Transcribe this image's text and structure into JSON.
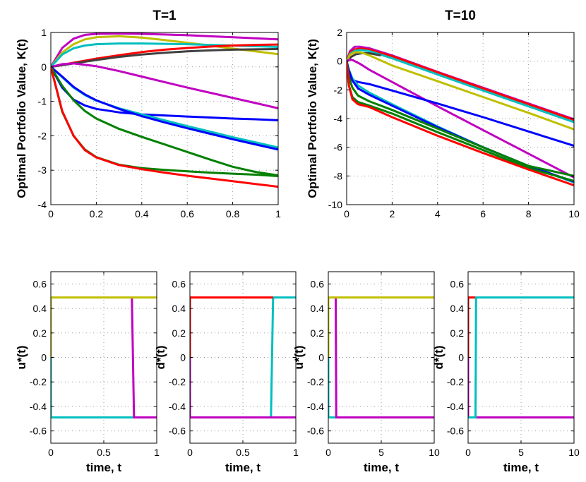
{
  "chart_data": [
    {
      "id": "k-t1",
      "type": "line",
      "title": "T=1",
      "xlabel": "",
      "ylabel": "Optimal Portfolio Value, K(t)",
      "xlim": [
        0,
        1
      ],
      "ylim": [
        -4,
        1
      ],
      "xticks": [
        0,
        0.2,
        0.4,
        0.6,
        0.8,
        1
      ],
      "xtick_labels": [
        "0",
        "0.2",
        "0.4",
        "0.6",
        "0.8",
        "1"
      ],
      "yticks": [
        -4,
        -3,
        -2,
        -1,
        0,
        1
      ],
      "ytick_labels": [
        "-4",
        "-3",
        "-2",
        "-1",
        "0",
        "1"
      ],
      "grid": true,
      "series": [
        {
          "name": "magenta-upper",
          "color": "#c000c0",
          "x": [
            0,
            0.05,
            0.1,
            0.15,
            0.2,
            0.3,
            0.4,
            0.5,
            0.6,
            0.7,
            0.8,
            0.9,
            1.0
          ],
          "y": [
            0,
            0.55,
            0.82,
            0.93,
            0.96,
            0.97,
            0.96,
            0.94,
            0.92,
            0.89,
            0.86,
            0.83,
            0.8
          ]
        },
        {
          "name": "olive",
          "color": "#bfbf00",
          "x": [
            0,
            0.05,
            0.1,
            0.15,
            0.2,
            0.3,
            0.4,
            0.5,
            0.6,
            0.7,
            0.8,
            0.9,
            1.0
          ],
          "y": [
            0,
            0.42,
            0.66,
            0.8,
            0.86,
            0.89,
            0.85,
            0.78,
            0.7,
            0.62,
            0.53,
            0.45,
            0.37
          ]
        },
        {
          "name": "cyan-upper",
          "color": "#00bfbf",
          "x": [
            0,
            0.05,
            0.1,
            0.15,
            0.2,
            0.3,
            0.4,
            0.5,
            0.6,
            0.7,
            0.8,
            0.9,
            1.0
          ],
          "y": [
            0,
            0.36,
            0.54,
            0.62,
            0.66,
            0.68,
            0.68,
            0.67,
            0.66,
            0.64,
            0.62,
            0.6,
            0.58
          ]
        },
        {
          "name": "red-upper",
          "color": "#ff0000",
          "x": [
            0,
            0.1,
            0.2,
            0.3,
            0.4,
            0.5,
            0.6,
            0.7,
            0.8,
            0.9,
            1.0
          ],
          "y": [
            0,
            0.12,
            0.24,
            0.34,
            0.43,
            0.5,
            0.55,
            0.59,
            0.62,
            0.64,
            0.65
          ]
        },
        {
          "name": "dark-gray",
          "color": "#404040",
          "x": [
            0,
            0.1,
            0.2,
            0.3,
            0.4,
            0.5,
            0.6,
            0.7,
            0.8,
            0.9,
            1.0
          ],
          "y": [
            0,
            0.1,
            0.2,
            0.29,
            0.36,
            0.41,
            0.45,
            0.48,
            0.5,
            0.51,
            0.52
          ]
        },
        {
          "name": "magenta-lower",
          "color": "#c000c0",
          "x": [
            0,
            0.05,
            0.1,
            0.2,
            0.3,
            0.4,
            0.5,
            0.6,
            0.7,
            0.8,
            0.9,
            1.0
          ],
          "y": [
            0,
            0.08,
            0.1,
            0.02,
            -0.12,
            -0.28,
            -0.44,
            -0.6,
            -0.75,
            -0.9,
            -1.05,
            -1.2
          ]
        },
        {
          "name": "blue-1",
          "color": "#0000ff",
          "x": [
            0,
            0.05,
            0.1,
            0.15,
            0.2,
            0.3,
            0.4,
            0.5,
            0.6,
            0.7,
            0.8,
            0.9,
            1.0
          ],
          "y": [
            0,
            -0.6,
            -0.95,
            -1.12,
            -1.22,
            -1.32,
            -1.38,
            -1.41,
            -1.44,
            -1.47,
            -1.5,
            -1.52,
            -1.55
          ]
        },
        {
          "name": "cyan-lower",
          "color": "#00bfbf",
          "x": [
            0,
            0.05,
            0.1,
            0.15,
            0.2,
            0.3,
            0.4,
            0.5,
            0.6,
            0.7,
            0.8,
            0.9,
            1.0
          ],
          "y": [
            0,
            -0.3,
            -0.6,
            -0.82,
            -0.98,
            -1.2,
            -1.38,
            -1.55,
            -1.72,
            -1.88,
            -2.04,
            -2.19,
            -2.34
          ]
        },
        {
          "name": "blue-2",
          "color": "#0000ff",
          "x": [
            0,
            0.05,
            0.1,
            0.15,
            0.2,
            0.3,
            0.4,
            0.5,
            0.6,
            0.7,
            0.8,
            0.9,
            1.0
          ],
          "y": [
            0,
            -0.28,
            -0.58,
            -0.8,
            -0.97,
            -1.22,
            -1.43,
            -1.61,
            -1.78,
            -1.94,
            -2.1,
            -2.25,
            -2.4
          ]
        },
        {
          "name": "green-1",
          "color": "#008000",
          "x": [
            0,
            0.05,
            0.1,
            0.15,
            0.2,
            0.3,
            0.4,
            0.5,
            0.6,
            0.7,
            0.8,
            0.9,
            1.0
          ],
          "y": [
            0,
            -0.55,
            -0.97,
            -1.28,
            -1.5,
            -1.8,
            -2.03,
            -2.25,
            -2.47,
            -2.69,
            -2.9,
            -3.05,
            -3.15
          ]
        },
        {
          "name": "green-2",
          "color": "#008000",
          "x": [
            0,
            0.05,
            0.1,
            0.15,
            0.2,
            0.3,
            0.4,
            0.5,
            0.6,
            0.7,
            0.8,
            0.9,
            1.0
          ],
          "y": [
            0,
            -1.3,
            -2.0,
            -2.4,
            -2.62,
            -2.84,
            -2.94,
            -2.99,
            -3.03,
            -3.07,
            -3.1,
            -3.13,
            -3.17
          ]
        },
        {
          "name": "red-lower",
          "color": "#ff0000",
          "x": [
            0,
            0.05,
            0.1,
            0.15,
            0.2,
            0.3,
            0.4,
            0.5,
            0.6,
            0.7,
            0.8,
            0.9,
            1.0
          ],
          "y": [
            0,
            -1.28,
            -2.0,
            -2.42,
            -2.63,
            -2.85,
            -2.97,
            -3.07,
            -3.16,
            -3.24,
            -3.32,
            -3.4,
            -3.48
          ]
        }
      ]
    },
    {
      "id": "k-t10",
      "type": "line",
      "title": "T=10",
      "xlabel": "",
      "ylabel": "Optimal Portfolio Value, K(t)",
      "xlim": [
        0,
        10
      ],
      "ylim": [
        -10,
        2
      ],
      "xticks": [
        0,
        2,
        4,
        6,
        8,
        10
      ],
      "xtick_labels": [
        "0",
        "2",
        "4",
        "6",
        "8",
        "10"
      ],
      "yticks": [
        -10,
        -8,
        -6,
        -4,
        -2,
        0,
        2
      ],
      "ytick_labels": [
        "-10",
        "-8",
        "-6",
        "-4",
        "-2",
        "0",
        "2"
      ],
      "grid": true,
      "series": [
        {
          "name": "magenta-upper",
          "color": "#c000c0",
          "x": [
            0,
            0.15,
            0.35,
            0.6,
            1.0,
            2,
            4,
            6,
            8,
            10
          ],
          "y": [
            0,
            0.7,
            1.0,
            1.0,
            0.9,
            0.4,
            -0.75,
            -1.85,
            -2.95,
            -4.05
          ]
        },
        {
          "name": "red-upper",
          "color": "#ff0000",
          "x": [
            0,
            0.15,
            0.35,
            0.6,
            1.0,
            2,
            4,
            6,
            8,
            10
          ],
          "y": [
            0,
            0.6,
            0.82,
            0.88,
            0.8,
            0.35,
            -0.78,
            -1.9,
            -3.0,
            -4.1
          ]
        },
        {
          "name": "cyan-upper",
          "color": "#00bfbf",
          "x": [
            0,
            0.15,
            0.35,
            0.6,
            1.0,
            2,
            4,
            6,
            8,
            10
          ],
          "y": [
            0,
            0.5,
            0.72,
            0.78,
            0.7,
            0.2,
            -0.93,
            -2.05,
            -3.15,
            -4.25
          ]
        },
        {
          "name": "dark-gray",
          "color": "#404040",
          "x": [
            0,
            0.2,
            0.4,
            0.7,
            1.0,
            1.5
          ],
          "y": [
            0,
            0.3,
            0.48,
            0.56,
            0.55,
            0.4
          ]
        },
        {
          "name": "olive",
          "color": "#bfbf00",
          "x": [
            0,
            0.15,
            0.35,
            0.6,
            1.0,
            2,
            4,
            6,
            8,
            10
          ],
          "y": [
            0,
            0.45,
            0.62,
            0.62,
            0.4,
            -0.3,
            -1.4,
            -2.5,
            -3.6,
            -4.75
          ]
        },
        {
          "name": "magenta-lower",
          "color": "#c000c0",
          "x": [
            0,
            0.15,
            0.3,
            0.6,
            1.0,
            2,
            4,
            6,
            8,
            10
          ],
          "y": [
            0,
            0.12,
            0.05,
            -0.2,
            -0.6,
            -1.45,
            -3.15,
            -4.8,
            -6.45,
            -8.1
          ]
        },
        {
          "name": "blue-1",
          "color": "#0000ff",
          "x": [
            0,
            0.1,
            0.25,
            0.5,
            1.0,
            2,
            4,
            6,
            8,
            10
          ],
          "y": [
            0,
            -1.0,
            -1.3,
            -1.45,
            -1.6,
            -2.05,
            -2.95,
            -3.9,
            -4.9,
            -5.9
          ]
        },
        {
          "name": "cyan-lower",
          "color": "#00bfbf",
          "x": [
            0,
            0.1,
            0.25,
            0.5,
            1.0,
            2,
            4,
            6,
            8,
            10
          ],
          "y": [
            0,
            -0.6,
            -1.2,
            -1.7,
            -2.2,
            -3.0,
            -4.55,
            -6.0,
            -7.3,
            -8.45
          ]
        },
        {
          "name": "blue-2",
          "color": "#0000ff",
          "x": [
            0,
            0.1,
            0.25,
            0.5,
            1.0,
            2,
            4,
            6,
            8,
            10
          ],
          "y": [
            0,
            -0.65,
            -1.35,
            -1.9,
            -2.35,
            -3.1,
            -4.6,
            -6.0,
            -7.3,
            -8.4
          ]
        },
        {
          "name": "green-1",
          "color": "#008000",
          "x": [
            0,
            0.1,
            0.25,
            0.5,
            1.0,
            2,
            4,
            6,
            8,
            10
          ],
          "y": [
            0,
            -1.1,
            -1.85,
            -2.4,
            -2.8,
            -3.4,
            -4.7,
            -6.0,
            -7.3,
            -8.0
          ]
        },
        {
          "name": "green-2",
          "color": "#008000",
          "x": [
            0,
            0.1,
            0.25,
            0.5,
            1.0,
            2,
            4,
            6,
            8,
            10
          ],
          "y": [
            0,
            -1.7,
            -2.5,
            -2.85,
            -3.1,
            -3.65,
            -4.95,
            -6.2,
            -7.45,
            -8.35
          ]
        },
        {
          "name": "red-lower",
          "color": "#ff0000",
          "x": [
            0,
            0.1,
            0.25,
            0.5,
            1.0,
            2,
            4,
            6,
            8,
            10
          ],
          "y": [
            0,
            -1.7,
            -2.65,
            -3.0,
            -3.2,
            -3.9,
            -5.2,
            -6.4,
            -7.55,
            -8.65
          ]
        }
      ]
    },
    {
      "id": "u-t1",
      "type": "line",
      "title": "",
      "xlabel": "time, t",
      "ylabel": "u*(t)",
      "xlim": [
        0,
        1
      ],
      "ylim": [
        -0.7,
        0.7
      ],
      "xticks": [
        0,
        0.5,
        1
      ],
      "xtick_labels": [
        "0",
        "0.5",
        "1"
      ],
      "yticks": [
        -0.6,
        -0.4,
        -0.2,
        0,
        0.2,
        0.4,
        0.6
      ],
      "ytick_labels": [
        "-0.6",
        "-0.4",
        "-0.2",
        "0",
        "0.2",
        "0.4",
        "0.6"
      ],
      "grid": true,
      "series": [
        {
          "name": "cyan",
          "color": "#00bfbf",
          "x": [
            0,
            0,
            1
          ],
          "y": [
            0,
            -0.49,
            -0.49
          ]
        },
        {
          "name": "magenta",
          "color": "#c000c0",
          "x": [
            0,
            0.765,
            0.785,
            1
          ],
          "y": [
            0.49,
            0.49,
            -0.49,
            -0.49
          ]
        },
        {
          "name": "olive",
          "color": "#bfbf00",
          "x": [
            0,
            0,
            1
          ],
          "y": [
            0,
            0.49,
            0.49
          ]
        }
      ]
    },
    {
      "id": "d-t1",
      "type": "line",
      "title": "",
      "xlabel": "time, t",
      "ylabel": "d*(t)",
      "xlim": [
        0,
        1
      ],
      "ylim": [
        -0.7,
        0.7
      ],
      "xticks": [
        0,
        0.5,
        1
      ],
      "xtick_labels": [
        "0",
        "0.5",
        "1"
      ],
      "yticks": [
        -0.6,
        -0.4,
        -0.2,
        0,
        0.2,
        0.4,
        0.6
      ],
      "ytick_labels": [
        "-0.6",
        "-0.4",
        "-0.2",
        "0",
        "0.2",
        "0.4",
        "0.6"
      ],
      "grid": true,
      "series": [
        {
          "name": "cyan",
          "color": "#00bfbf",
          "x": [
            0,
            0.765,
            0.785,
            1
          ],
          "y": [
            -0.49,
            -0.49,
            0.49,
            0.49
          ]
        },
        {
          "name": "red",
          "color": "#ff0000",
          "x": [
            0,
            0,
            0.785
          ],
          "y": [
            0,
            0.49,
            0.49
          ]
        },
        {
          "name": "magenta",
          "color": "#c000c0",
          "x": [
            0,
            0,
            1
          ],
          "y": [
            0,
            -0.49,
            -0.49
          ]
        }
      ]
    },
    {
      "id": "u-t10",
      "type": "line",
      "title": "",
      "xlabel": "time, t",
      "ylabel": "u*(t)",
      "xlim": [
        0,
        10
      ],
      "ylim": [
        -0.7,
        0.7
      ],
      "xticks": [
        0,
        5,
        10
      ],
      "xtick_labels": [
        "0",
        "5",
        "10"
      ],
      "yticks": [
        -0.6,
        -0.4,
        -0.2,
        0,
        0.2,
        0.4,
        0.6
      ],
      "ytick_labels": [
        "-0.6",
        "-0.4",
        "-0.2",
        "0",
        "0.2",
        "0.4",
        "0.6"
      ],
      "grid": true,
      "series": [
        {
          "name": "cyan",
          "color": "#00bfbf",
          "x": [
            0,
            0,
            0.7
          ],
          "y": [
            0,
            -0.49,
            -0.49
          ]
        },
        {
          "name": "magenta",
          "color": "#c000c0",
          "x": [
            0,
            0.7,
            0.75,
            10
          ],
          "y": [
            0.49,
            0.49,
            -0.49,
            -0.49
          ]
        },
        {
          "name": "olive",
          "color": "#bfbf00",
          "x": [
            0,
            0,
            10
          ],
          "y": [
            0,
            0.49,
            0.49
          ]
        }
      ]
    },
    {
      "id": "d-t10",
      "type": "line",
      "title": "",
      "xlabel": "time, t",
      "ylabel": "d*(t)",
      "xlim": [
        0,
        10
      ],
      "ylim": [
        -0.7,
        0.7
      ],
      "xticks": [
        0,
        5,
        10
      ],
      "xtick_labels": [
        "0",
        "5",
        "10"
      ],
      "yticks": [
        -0.6,
        -0.4,
        -0.2,
        0,
        0.2,
        0.4,
        0.6
      ],
      "ytick_labels": [
        "-0.6",
        "-0.4",
        "-0.2",
        "0",
        "0.2",
        "0.4",
        "0.6"
      ],
      "grid": true,
      "series": [
        {
          "name": "red",
          "color": "#ff0000",
          "x": [
            0,
            0,
            0.7
          ],
          "y": [
            0,
            0.49,
            0.49
          ]
        },
        {
          "name": "magenta",
          "color": "#c000c0",
          "x": [
            0,
            0,
            10
          ],
          "y": [
            0,
            -0.49,
            -0.49
          ]
        },
        {
          "name": "cyan",
          "color": "#00bfbf",
          "x": [
            0,
            0.7,
            0.75,
            10
          ],
          "y": [
            -0.49,
            -0.49,
            0.49,
            0.49
          ]
        }
      ]
    }
  ]
}
